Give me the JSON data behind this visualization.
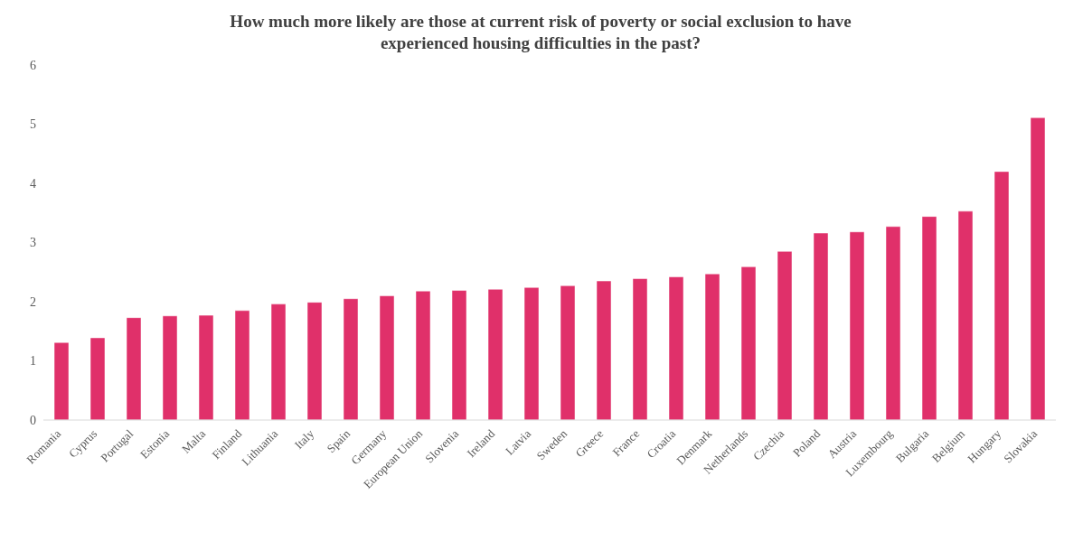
{
  "chart_data": {
    "type": "bar",
    "title": "How much more likely are those at current risk of poverty or social exclusion to have experienced housing difficulties in the past?",
    "categories": [
      "Romania",
      "Cyprus",
      "Portugal",
      "Estonia",
      "Malta",
      "Finland",
      "Lithuania",
      "Italy",
      "Spain",
      "Germany",
      "European Union",
      "Slovenia",
      "Ireland",
      "Latvia",
      "Sweden",
      "Greece",
      "France",
      "Croatia",
      "Denmark",
      "Netherlands",
      "Czechia",
      "Poland",
      "Austria",
      "Luxembourg",
      "Bulgaria",
      "Belgium",
      "Hungary",
      "Slovakia"
    ],
    "values": [
      1.31,
      1.39,
      1.73,
      1.76,
      1.77,
      1.85,
      1.96,
      1.99,
      2.05,
      2.1,
      2.18,
      2.19,
      2.21,
      2.24,
      2.27,
      2.35,
      2.39,
      2.42,
      2.47,
      2.59,
      2.85,
      3.16,
      3.18,
      3.27,
      3.44,
      3.53,
      4.2,
      5.11
    ],
    "color": "#e0306a",
    "ylim": [
      0,
      6
    ],
    "yticks": [
      0,
      1,
      2,
      3,
      4,
      5,
      6
    ],
    "grid": false,
    "legend": false
  }
}
